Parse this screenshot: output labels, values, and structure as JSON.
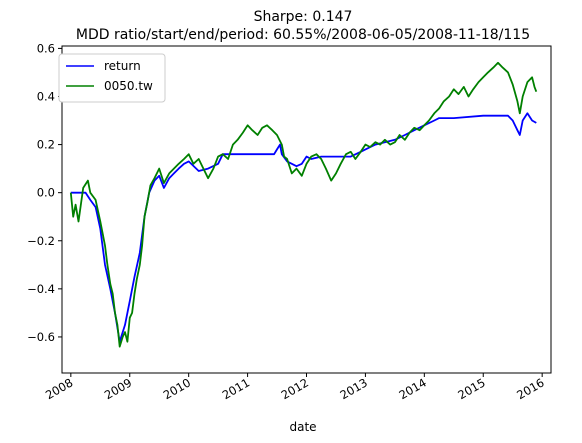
{
  "chart_data": {
    "type": "line",
    "title": "Sharpe: 0.147",
    "subtitle": "MDD ratio/start/end/period: 60.55%/2008-06-05/2008-11-18/115",
    "xlabel": "date",
    "ylabel": "",
    "xlim": [
      2007.85,
      2016.15
    ],
    "ylim": [
      -0.75,
      0.61
    ],
    "x_ticks": [
      2008,
      2009,
      2010,
      2011,
      2012,
      2013,
      2014,
      2015,
      2016
    ],
    "x_tick_labels": [
      "2008",
      "2009",
      "2010",
      "2011",
      "2012",
      "2013",
      "2014",
      "2015",
      "2016"
    ],
    "y_ticks": [
      -0.6,
      -0.4,
      -0.2,
      0.0,
      0.2,
      0.4,
      0.6
    ],
    "y_tick_labels": [
      "−0.6",
      "−0.4",
      "−0.2",
      "0.0",
      "0.2",
      "0.4",
      "0.6"
    ],
    "grid": false,
    "legend_position": "top-left",
    "series": [
      {
        "name": "return",
        "color": "#0000ff",
        "points": [
          [
            2008.0,
            0.0
          ],
          [
            2008.25,
            0.0
          ],
          [
            2008.33,
            -0.03
          ],
          [
            2008.42,
            -0.06
          ],
          [
            2008.5,
            -0.15
          ],
          [
            2008.58,
            -0.3
          ],
          [
            2008.67,
            -0.4
          ],
          [
            2008.75,
            -0.5
          ],
          [
            2008.83,
            -0.62
          ],
          [
            2008.92,
            -0.55
          ],
          [
            2009.0,
            -0.45
          ],
          [
            2009.08,
            -0.35
          ],
          [
            2009.17,
            -0.25
          ],
          [
            2009.25,
            -0.1
          ],
          [
            2009.33,
            0.0
          ],
          [
            2009.42,
            0.05
          ],
          [
            2009.5,
            0.07
          ],
          [
            2009.58,
            0.02
          ],
          [
            2009.67,
            0.06
          ],
          [
            2009.75,
            0.08
          ],
          [
            2009.83,
            0.1
          ],
          [
            2009.92,
            0.12
          ],
          [
            2010.0,
            0.13
          ],
          [
            2010.17,
            0.09
          ],
          [
            2010.33,
            0.1
          ],
          [
            2010.5,
            0.12
          ],
          [
            2010.58,
            0.16
          ],
          [
            2010.75,
            0.16
          ],
          [
            2011.0,
            0.16
          ],
          [
            2011.25,
            0.16
          ],
          [
            2011.45,
            0.16
          ],
          [
            2011.5,
            0.18
          ],
          [
            2011.55,
            0.2
          ],
          [
            2011.58,
            0.16
          ],
          [
            2011.67,
            0.13
          ],
          [
            2011.75,
            0.12
          ],
          [
            2011.83,
            0.11
          ],
          [
            2011.92,
            0.12
          ],
          [
            2012.0,
            0.15
          ],
          [
            2012.08,
            0.14
          ],
          [
            2012.25,
            0.15
          ],
          [
            2012.5,
            0.15
          ],
          [
            2012.67,
            0.15
          ],
          [
            2012.75,
            0.15
          ],
          [
            2012.92,
            0.17
          ],
          [
            2013.0,
            0.18
          ],
          [
            2013.17,
            0.2
          ],
          [
            2013.33,
            0.21
          ],
          [
            2013.5,
            0.22
          ],
          [
            2013.67,
            0.24
          ],
          [
            2013.83,
            0.26
          ],
          [
            2014.0,
            0.28
          ],
          [
            2014.17,
            0.3
          ],
          [
            2014.25,
            0.31
          ],
          [
            2014.5,
            0.31
          ],
          [
            2015.0,
            0.32
          ],
          [
            2015.42,
            0.32
          ],
          [
            2015.5,
            0.3
          ],
          [
            2015.58,
            0.26
          ],
          [
            2015.62,
            0.24
          ],
          [
            2015.67,
            0.3
          ],
          [
            2015.75,
            0.33
          ],
          [
            2015.83,
            0.3
          ],
          [
            2015.9,
            0.29
          ]
        ]
      },
      {
        "name": "0050.tw",
        "color": "#008000",
        "points": [
          [
            2008.0,
            0.0
          ],
          [
            2008.04,
            -0.1
          ],
          [
            2008.08,
            -0.05
          ],
          [
            2008.13,
            -0.12
          ],
          [
            2008.21,
            0.02
          ],
          [
            2008.29,
            0.05
          ],
          [
            2008.33,
            0.0
          ],
          [
            2008.42,
            -0.03
          ],
          [
            2008.5,
            -0.12
          ],
          [
            2008.58,
            -0.22
          ],
          [
            2008.62,
            -0.3
          ],
          [
            2008.67,
            -0.38
          ],
          [
            2008.71,
            -0.42
          ],
          [
            2008.75,
            -0.5
          ],
          [
            2008.79,
            -0.55
          ],
          [
            2008.83,
            -0.64
          ],
          [
            2008.88,
            -0.6
          ],
          [
            2008.92,
            -0.58
          ],
          [
            2008.96,
            -0.62
          ],
          [
            2009.0,
            -0.52
          ],
          [
            2009.04,
            -0.5
          ],
          [
            2009.08,
            -0.42
          ],
          [
            2009.12,
            -0.36
          ],
          [
            2009.17,
            -0.3
          ],
          [
            2009.21,
            -0.22
          ],
          [
            2009.25,
            -0.1
          ],
          [
            2009.3,
            -0.04
          ],
          [
            2009.35,
            0.03
          ],
          [
            2009.42,
            0.06
          ],
          [
            2009.5,
            0.1
          ],
          [
            2009.58,
            0.04
          ],
          [
            2009.67,
            0.08
          ],
          [
            2009.75,
            0.1
          ],
          [
            2009.83,
            0.12
          ],
          [
            2009.92,
            0.14
          ],
          [
            2010.0,
            0.16
          ],
          [
            2010.08,
            0.12
          ],
          [
            2010.17,
            0.14
          ],
          [
            2010.25,
            0.1
          ],
          [
            2010.33,
            0.06
          ],
          [
            2010.42,
            0.1
          ],
          [
            2010.5,
            0.15
          ],
          [
            2010.58,
            0.16
          ],
          [
            2010.67,
            0.14
          ],
          [
            2010.75,
            0.2
          ],
          [
            2010.83,
            0.22
          ],
          [
            2010.92,
            0.25
          ],
          [
            2011.0,
            0.28
          ],
          [
            2011.08,
            0.26
          ],
          [
            2011.17,
            0.24
          ],
          [
            2011.25,
            0.27
          ],
          [
            2011.33,
            0.28
          ],
          [
            2011.42,
            0.26
          ],
          [
            2011.5,
            0.24
          ],
          [
            2011.58,
            0.2
          ],
          [
            2011.62,
            0.15
          ],
          [
            2011.67,
            0.14
          ],
          [
            2011.75,
            0.08
          ],
          [
            2011.83,
            0.1
          ],
          [
            2011.92,
            0.07
          ],
          [
            2012.0,
            0.12
          ],
          [
            2012.08,
            0.15
          ],
          [
            2012.17,
            0.16
          ],
          [
            2012.25,
            0.14
          ],
          [
            2012.33,
            0.1
          ],
          [
            2012.42,
            0.05
          ],
          [
            2012.5,
            0.08
          ],
          [
            2012.58,
            0.12
          ],
          [
            2012.67,
            0.16
          ],
          [
            2012.75,
            0.17
          ],
          [
            2012.83,
            0.14
          ],
          [
            2012.92,
            0.17
          ],
          [
            2013.0,
            0.2
          ],
          [
            2013.08,
            0.19
          ],
          [
            2013.17,
            0.21
          ],
          [
            2013.25,
            0.2
          ],
          [
            2013.33,
            0.22
          ],
          [
            2013.42,
            0.2
          ],
          [
            2013.5,
            0.21
          ],
          [
            2013.58,
            0.24
          ],
          [
            2013.67,
            0.22
          ],
          [
            2013.75,
            0.25
          ],
          [
            2013.83,
            0.27
          ],
          [
            2013.92,
            0.26
          ],
          [
            2014.0,
            0.28
          ],
          [
            2014.08,
            0.3
          ],
          [
            2014.17,
            0.33
          ],
          [
            2014.25,
            0.35
          ],
          [
            2014.33,
            0.38
          ],
          [
            2014.42,
            0.4
          ],
          [
            2014.5,
            0.43
          ],
          [
            2014.58,
            0.41
          ],
          [
            2014.67,
            0.44
          ],
          [
            2014.75,
            0.4
          ],
          [
            2014.83,
            0.43
          ],
          [
            2014.92,
            0.46
          ],
          [
            2015.0,
            0.48
          ],
          [
            2015.08,
            0.5
          ],
          [
            2015.17,
            0.52
          ],
          [
            2015.25,
            0.54
          ],
          [
            2015.33,
            0.52
          ],
          [
            2015.42,
            0.5
          ],
          [
            2015.5,
            0.45
          ],
          [
            2015.58,
            0.38
          ],
          [
            2015.62,
            0.33
          ],
          [
            2015.67,
            0.4
          ],
          [
            2015.75,
            0.46
          ],
          [
            2015.83,
            0.48
          ],
          [
            2015.87,
            0.44
          ],
          [
            2015.9,
            0.42
          ]
        ]
      }
    ]
  }
}
